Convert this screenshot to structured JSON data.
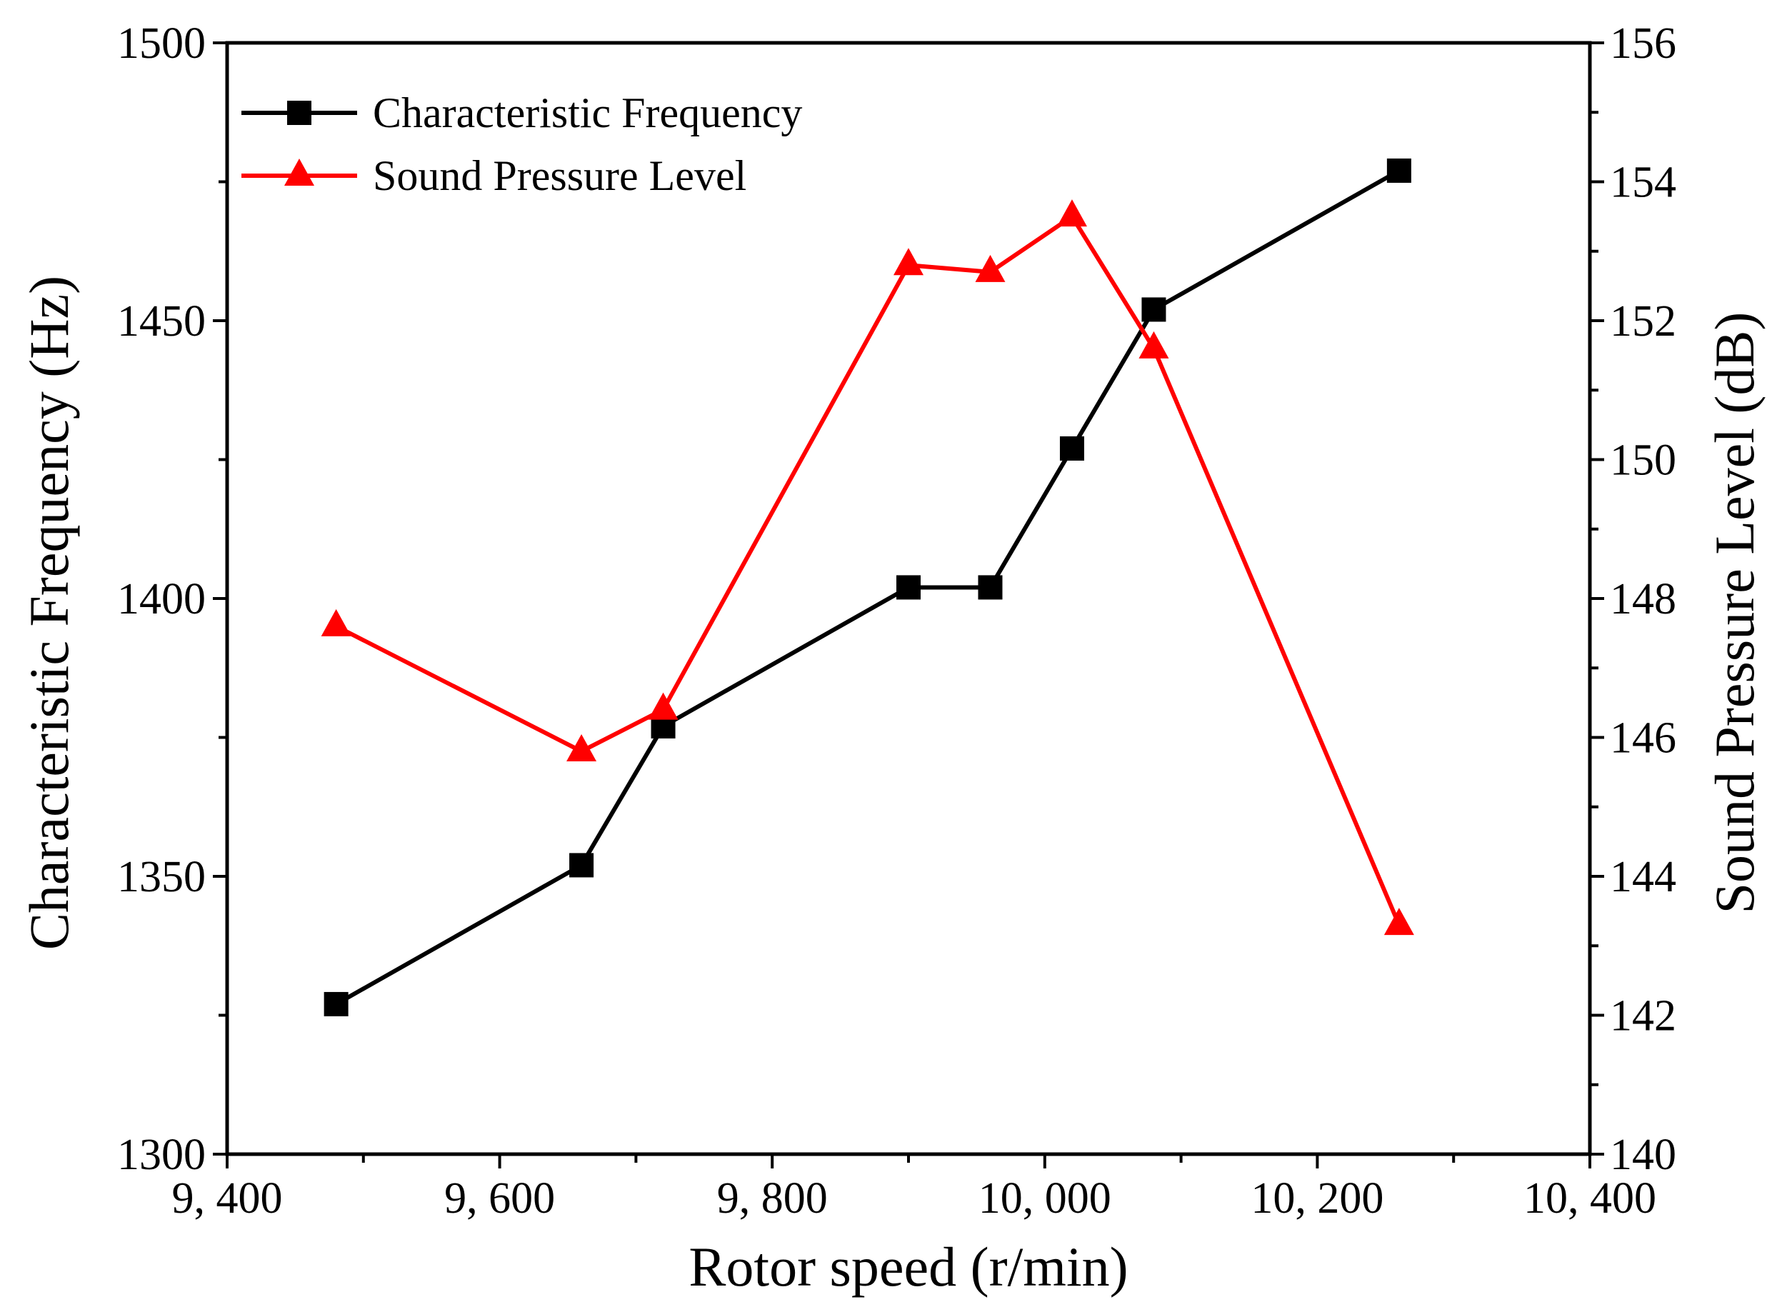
{
  "chart_data": {
    "type": "line",
    "title": "",
    "xlabel": "Rotor speed (r/min)",
    "ylabel_left": "Characteristic Frequency (Hz)",
    "ylabel_right": "Sound Pressure Level (dB)",
    "xlim": [
      9400,
      10400
    ],
    "ylim_left": [
      1300,
      1500
    ],
    "ylim_right": [
      140,
      156
    ],
    "x_ticks": [
      9400,
      9600,
      9800,
      10000,
      10200,
      10400
    ],
    "x_tick_labels": [
      "9, 400",
      "9, 600",
      "9, 800",
      "10, 000",
      "10, 200",
      "10, 400"
    ],
    "y_left_ticks": [
      1300,
      1350,
      1400,
      1450,
      1500
    ],
    "y_left_tick_labels": [
      "1300",
      "1350",
      "1400",
      "1450",
      "1500"
    ],
    "y_right_ticks": [
      140,
      142,
      144,
      146,
      148,
      150,
      152,
      154,
      156
    ],
    "y_right_tick_labels": [
      "140",
      "142",
      "144",
      "146",
      "148",
      "150",
      "152",
      "154",
      "156"
    ],
    "legend_position": "top-left",
    "grid": false,
    "series": [
      {
        "name": "Characteristic Frequency",
        "axis": "left",
        "color": "#000000",
        "marker": "square",
        "x": [
          9480,
          9660,
          9720,
          9900,
          9960,
          10020,
          10080,
          10260
        ],
        "values": [
          1327,
          1352,
          1377,
          1402,
          1402,
          1427,
          1452,
          1477
        ]
      },
      {
        "name": "Sound Pressure Level",
        "axis": "right",
        "color": "#ff0000",
        "marker": "triangle",
        "x": [
          9480,
          9660,
          9720,
          9900,
          9960,
          10020,
          10080,
          10260
        ],
        "values": [
          147.6,
          145.8,
          146.4,
          152.8,
          152.7,
          153.5,
          151.6,
          143.3
        ]
      }
    ]
  }
}
